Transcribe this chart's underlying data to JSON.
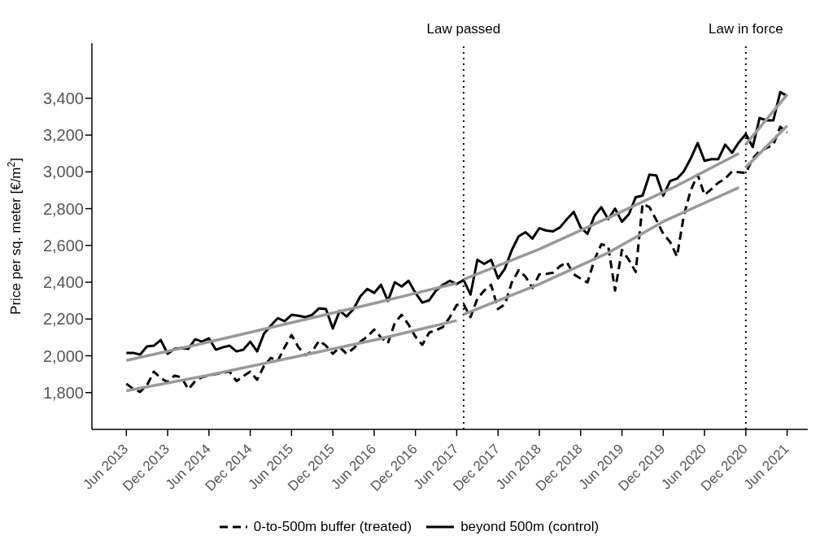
{
  "chart_data": {
    "type": "line",
    "ylabel": "Price per sq. meter [€/m$^{2}$]",
    "legend": "bottom",
    "x": [
      "2013-06",
      "2013-07",
      "2013-08",
      "2013-09",
      "2013-10",
      "2013-11",
      "2013-12",
      "2014-01",
      "2014-02",
      "2014-03",
      "2014-04",
      "2014-05",
      "2014-06",
      "2014-07",
      "2014-08",
      "2014-09",
      "2014-10",
      "2014-11",
      "2014-12",
      "2015-01",
      "2015-02",
      "2015-03",
      "2015-04",
      "2015-05",
      "2015-06",
      "2015-07",
      "2015-08",
      "2015-09",
      "2015-10",
      "2015-11",
      "2015-12",
      "2016-01",
      "2016-02",
      "2016-03",
      "2016-04",
      "2016-05",
      "2016-06",
      "2016-07",
      "2016-08",
      "2016-09",
      "2016-10",
      "2016-11",
      "2016-12",
      "2017-01",
      "2017-02",
      "2017-03",
      "2017-04",
      "2017-05",
      "2017-06",
      "2017-07",
      "2017-08",
      "2017-09",
      "2017-10",
      "2017-11",
      "2017-12",
      "2018-01",
      "2018-02",
      "2018-03",
      "2018-04",
      "2018-05",
      "2018-06",
      "2018-07",
      "2018-08",
      "2018-09",
      "2018-10",
      "2018-11",
      "2018-12",
      "2019-01",
      "2019-02",
      "2019-03",
      "2019-04",
      "2019-05",
      "2019-06",
      "2019-07",
      "2019-08",
      "2019-09",
      "2019-10",
      "2019-11",
      "2019-12",
      "2020-01",
      "2020-02",
      "2020-03",
      "2020-04",
      "2020-05",
      "2020-06",
      "2020-07",
      "2020-08",
      "2020-09",
      "2020-10",
      "2020-11",
      "2020-12",
      "2021-01",
      "2021-02",
      "2021-03",
      "2021-04",
      "2021-05",
      "2021-06"
    ],
    "series": [
      {
        "name": "0-to-500m buffer (treated)",
        "color": "#000000",
        "line_style": "dashed",
        "values": [
          1848,
          1820,
          1804,
          1840,
          1914,
          1879,
          1857,
          1892,
          1884,
          1818,
          1862,
          1884,
          1892,
          1901,
          1908,
          1914,
          1862,
          1890,
          1914,
          1870,
          1945,
          1989,
          1972,
          2047,
          2113,
          2047,
          2003,
          2024,
          2082,
          2055,
          2011,
          2047,
          2011,
          2040,
          2077,
          2104,
          2143,
          2100,
          2068,
          2179,
          2223,
          2170,
          2104,
          2060,
          2126,
          2140,
          2157,
          2210,
          2276,
          2280,
          2210,
          2311,
          2355,
          2386,
          2254,
          2280,
          2399,
          2465,
          2430,
          2368,
          2443,
          2445,
          2452,
          2487,
          2509,
          2443,
          2420,
          2399,
          2522,
          2606,
          2597,
          2355,
          2575,
          2522,
          2456,
          2826,
          2808,
          2738,
          2663,
          2619,
          2540,
          2765,
          2900,
          2985,
          2875,
          2906,
          2941,
          2963,
          3003,
          2998,
          2994,
          3073,
          3113,
          3130,
          3148,
          3245,
          3214
        ]
      },
      {
        "name": "beyond 500m (control)",
        "color": "#000000",
        "line_style": "solid",
        "values": [
          2016,
          2016,
          2007,
          2051,
          2055,
          2086,
          2011,
          2038,
          2042,
          2038,
          2090,
          2077,
          2095,
          2033,
          2046,
          2055,
          2024,
          2033,
          2077,
          2024,
          2121,
          2165,
          2205,
          2188,
          2223,
          2218,
          2210,
          2223,
          2258,
          2254,
          2148,
          2245,
          2214,
          2254,
          2324,
          2364,
          2342,
          2386,
          2298,
          2400,
          2377,
          2408,
          2342,
          2289,
          2302,
          2355,
          2386,
          2408,
          2390,
          2412,
          2333,
          2522,
          2500,
          2522,
          2421,
          2474,
          2575,
          2650,
          2672,
          2637,
          2694,
          2681,
          2677,
          2698,
          2743,
          2782,
          2698,
          2663,
          2760,
          2808,
          2743,
          2800,
          2729,
          2769,
          2862,
          2871,
          2985,
          2980,
          2871,
          2950,
          2963,
          3003,
          3073,
          3157,
          3060,
          3069,
          3069,
          3148,
          3104,
          3161,
          3205,
          3135,
          3293,
          3280,
          3280,
          3434,
          3412
        ]
      },
      {
        "type": "line",
        "color": "#999999",
        "line_style": "solid",
        "x": [
          "2013-06",
          "2014-06",
          "2015-06",
          "2016-06",
          "2017-06"
        ],
        "values": [
          1975,
          2075,
          2180,
          2285,
          2395
        ]
      },
      {
        "type": "line",
        "color": "#999999",
        "line_style": "solid",
        "x": [
          "2017-07",
          "2018-06",
          "2019-04",
          "2020-02",
          "2020-11"
        ],
        "values": [
          2415,
          2580,
          2750,
          2925,
          3100
        ]
      },
      {
        "type": "line",
        "color": "#999999",
        "line_style": "solid",
        "x": [
          "2020-12",
          "2021-06"
        ],
        "values": [
          3150,
          3420
        ]
      },
      {
        "type": "line",
        "color": "#999999",
        "line_style": "solid",
        "x": [
          "2013-06",
          "2014-06",
          "2015-06",
          "2016-06",
          "2017-06"
        ],
        "values": [
          1810,
          1895,
          1990,
          2085,
          2192
        ]
      },
      {
        "type": "line",
        "color": "#999999",
        "line_style": "solid",
        "x": [
          "2017-07",
          "2018-06",
          "2019-04",
          "2019-12",
          "2020-11"
        ],
        "values": [
          2225,
          2390,
          2560,
          2730,
          2915
        ]
      },
      {
        "type": "line",
        "color": "#999999",
        "line_style": "solid",
        "x": [
          "2020-12",
          "2021-06"
        ],
        "values": [
          3025,
          3250
        ]
      }
    ],
    "xlim": [
      "2013-01",
      "2021-09"
    ],
    "xticks": [
      {
        "value": "2013-06",
        "label": "Jun 2013"
      },
      {
        "value": "2013-12",
        "label": "Dec 2013"
      },
      {
        "value": "2014-06",
        "label": "Jun 2014"
      },
      {
        "value": "2014-12",
        "label": "Dec 2014"
      },
      {
        "value": "2015-06",
        "label": "Jun 2015"
      },
      {
        "value": "2015-12",
        "label": "Dec 2015"
      },
      {
        "value": "2016-06",
        "label": "Jun 2016"
      },
      {
        "value": "2016-12",
        "label": "Dec 2016"
      },
      {
        "value": "2017-06",
        "label": "Jun 2017"
      },
      {
        "value": "2017-12",
        "label": "Dec 2017"
      },
      {
        "value": "2018-06",
        "label": "Jun 2018"
      },
      {
        "value": "2018-12",
        "label": "Dec 2018"
      },
      {
        "value": "2019-06",
        "label": "Jun 2019"
      },
      {
        "value": "2019-12",
        "label": "Dec 2019"
      },
      {
        "value": "2020-06",
        "label": "Jun 2020"
      },
      {
        "value": "2020-12",
        "label": "Dec 2020"
      },
      {
        "value": "2021-06",
        "label": "Jun 2021"
      }
    ],
    "ylim": [
      1600,
      3700
    ],
    "yticks": [
      {
        "value": 1800,
        "label": "1,800"
      },
      {
        "value": 2000,
        "label": "2,000"
      },
      {
        "value": 2200,
        "label": "2,200"
      },
      {
        "value": 2400,
        "label": "2,400"
      },
      {
        "value": 2600,
        "label": "2,600"
      },
      {
        "value": 2800,
        "label": "2,800"
      },
      {
        "value": 3000,
        "label": "3,000"
      },
      {
        "value": 3200,
        "label": "3,200"
      },
      {
        "value": 3400,
        "label": "3,400"
      }
    ],
    "ref_lines": [
      {
        "axis": "x",
        "value": "2017-07",
        "label": "Law passed",
        "color": "#000000",
        "line_style": "dotted"
      },
      {
        "axis": "x",
        "value": "2020-12",
        "label": "Law in force",
        "color": "#000000",
        "line_style": "dotted"
      }
    ]
  }
}
